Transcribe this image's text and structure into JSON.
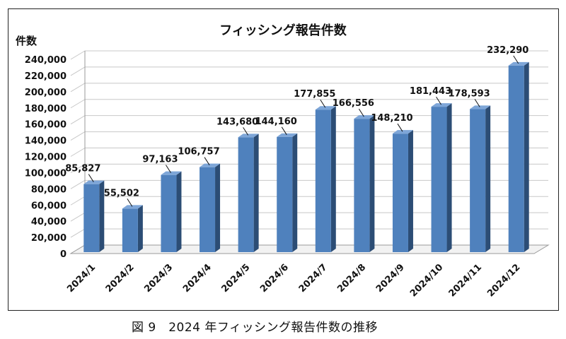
{
  "chart_data": {
    "type": "bar",
    "title": "フィッシング報告件数",
    "ylabel": "件数",
    "xlabel": "",
    "categories": [
      "2024/1",
      "2024/2",
      "2024/3",
      "2024/4",
      "2024/5",
      "2024/6",
      "2024/7",
      "2024/8",
      "2024/9",
      "2024/10",
      "2024/11",
      "2024/12"
    ],
    "values": [
      85827,
      55502,
      97163,
      106757,
      143680,
      144160,
      177855,
      166556,
      148210,
      181443,
      178593,
      232290
    ],
    "value_labels": [
      "85,827",
      "55,502",
      "97,163",
      "106,757",
      "143,680",
      "144,160",
      "177,855",
      "166,556",
      "148,210",
      "181,443",
      "178,593",
      "232,290"
    ],
    "ylim": [
      0,
      240000
    ],
    "yticks": [
      0,
      20000,
      40000,
      60000,
      80000,
      100000,
      120000,
      140000,
      160000,
      180000,
      200000,
      220000,
      240000
    ],
    "ytick_labels": [
      "0",
      "20,000",
      "40,000",
      "60,000",
      "80,000",
      "100,000",
      "120,000",
      "140,000",
      "160,000",
      "180,000",
      "200,000",
      "220,000",
      "240,000"
    ],
    "grid": true,
    "legend": "none",
    "bar_color": "#4f81bd"
  },
  "caption": "図 9　2024 年フィッシング報告件数の推移"
}
